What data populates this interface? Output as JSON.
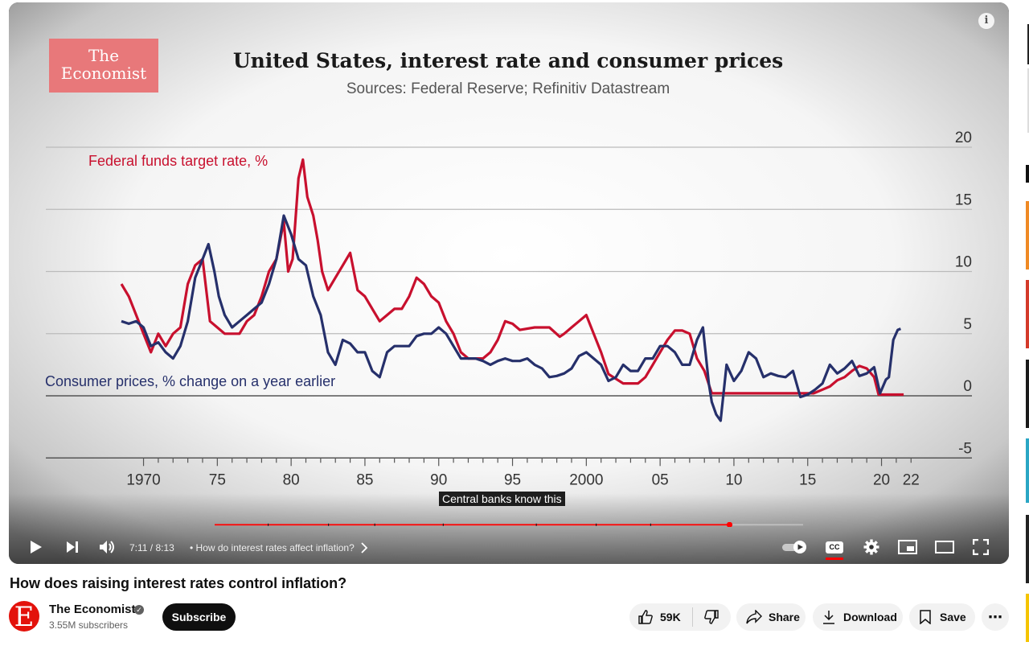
{
  "video": {
    "logo_line1": "The",
    "logo_line2": "Economist",
    "chart_title": "United States, interest rate and consumer prices",
    "chart_subtitle": "Sources: Federal Reserve; Refinitiv Datastream",
    "caption": "Central banks know this",
    "info_icon": "i"
  },
  "chart_data": {
    "type": "line",
    "title": "United States, interest rate and consumer prices",
    "subtitle": "Sources: Federal Reserve; Refinitiv Datastream",
    "ylim": [
      -5,
      20
    ],
    "y_ticks": [
      "20",
      "15",
      "10",
      "5",
      "0",
      "-5"
    ],
    "x_ticks": [
      "1970",
      "75",
      "80",
      "85",
      "90",
      "95",
      "2000",
      "05",
      "10",
      "15",
      "20",
      "22"
    ],
    "grid": true,
    "series": [
      {
        "name": "Federal funds target rate, %",
        "color": "#c8102e",
        "points": [
          [
            1969.0,
            9.0
          ],
          [
            1969.5,
            8.0
          ],
          [
            1970.0,
            6.5
          ],
          [
            1970.5,
            5.0
          ],
          [
            1971.0,
            3.5
          ],
          [
            1971.5,
            5.0
          ],
          [
            1972.0,
            4.0
          ],
          [
            1972.5,
            5.0
          ],
          [
            1973.0,
            5.5
          ],
          [
            1973.5,
            9.0
          ],
          [
            1974.0,
            10.5
          ],
          [
            1974.5,
            11.0
          ],
          [
            1975.0,
            6.0
          ],
          [
            1975.5,
            5.5
          ],
          [
            1976.0,
            5.0
          ],
          [
            1976.5,
            5.0
          ],
          [
            1977.0,
            5.0
          ],
          [
            1977.5,
            6.0
          ],
          [
            1978.0,
            6.5
          ],
          [
            1978.5,
            8.0
          ],
          [
            1979.0,
            10.0
          ],
          [
            1979.5,
            11.0
          ],
          [
            1980.0,
            14.0
          ],
          [
            1980.3,
            10.0
          ],
          [
            1980.6,
            11.0
          ],
          [
            1981.0,
            17.5
          ],
          [
            1981.3,
            19.0
          ],
          [
            1981.6,
            16.0
          ],
          [
            1982.0,
            14.5
          ],
          [
            1982.3,
            12.5
          ],
          [
            1982.6,
            10.0
          ],
          [
            1983.0,
            8.5
          ],
          [
            1983.5,
            9.5
          ],
          [
            1984.0,
            10.5
          ],
          [
            1984.5,
            11.5
          ],
          [
            1985.0,
            8.5
          ],
          [
            1985.5,
            8.0
          ],
          [
            1986.0,
            7.0
          ],
          [
            1986.5,
            6.0
          ],
          [
            1987.0,
            6.5
          ],
          [
            1987.5,
            7.0
          ],
          [
            1988.0,
            7.0
          ],
          [
            1988.5,
            8.0
          ],
          [
            1989.0,
            9.5
          ],
          [
            1989.5,
            9.0
          ],
          [
            1990.0,
            8.0
          ],
          [
            1990.5,
            7.5
          ],
          [
            1991.0,
            6.0
          ],
          [
            1991.5,
            5.0
          ],
          [
            1992.0,
            3.5
          ],
          [
            1992.5,
            3.0
          ],
          [
            1993.0,
            3.0
          ],
          [
            1993.5,
            3.0
          ],
          [
            1994.0,
            3.5
          ],
          [
            1994.5,
            4.5
          ],
          [
            1995.0,
            6.0
          ],
          [
            1995.5,
            5.8
          ],
          [
            1996.0,
            5.3
          ],
          [
            1997.0,
            5.5
          ],
          [
            1998.0,
            5.5
          ],
          [
            1998.7,
            4.75
          ],
          [
            1999.0,
            5.0
          ],
          [
            1999.5,
            5.5
          ],
          [
            2000.0,
            6.0
          ],
          [
            2000.5,
            6.5
          ],
          [
            2001.0,
            5.0
          ],
          [
            2001.5,
            3.5
          ],
          [
            2002.0,
            1.75
          ],
          [
            2003.0,
            1.0
          ],
          [
            2004.0,
            1.0
          ],
          [
            2004.5,
            1.5
          ],
          [
            2005.0,
            2.5
          ],
          [
            2005.5,
            3.5
          ],
          [
            2006.0,
            4.5
          ],
          [
            2006.5,
            5.25
          ],
          [
            2007.0,
            5.25
          ],
          [
            2007.5,
            5.0
          ],
          [
            2008.0,
            3.0
          ],
          [
            2008.5,
            2.0
          ],
          [
            2009.0,
            0.2
          ],
          [
            2015.9,
            0.2
          ],
          [
            2016.5,
            0.5
          ],
          [
            2017.0,
            0.75
          ],
          [
            2017.5,
            1.25
          ],
          [
            2018.0,
            1.5
          ],
          [
            2018.5,
            2.0
          ],
          [
            2019.0,
            2.4
          ],
          [
            2019.5,
            2.2
          ],
          [
            2020.0,
            1.5
          ],
          [
            2020.3,
            0.1
          ],
          [
            2021.0,
            0.1
          ],
          [
            2022.0,
            0.1
          ]
        ]
      },
      {
        "name": "Consumer prices, % change on a year earlier",
        "color": "#26306b",
        "points": [
          [
            1969.0,
            6.0
          ],
          [
            1969.5,
            5.8
          ],
          [
            1970.0,
            6.0
          ],
          [
            1970.5,
            5.5
          ],
          [
            1971.0,
            4.0
          ],
          [
            1971.5,
            4.3
          ],
          [
            1972.0,
            3.5
          ],
          [
            1972.5,
            3.0
          ],
          [
            1973.0,
            4.0
          ],
          [
            1973.5,
            6.0
          ],
          [
            1974.0,
            9.5
          ],
          [
            1974.5,
            11.0
          ],
          [
            1974.9,
            12.2
          ],
          [
            1975.3,
            10.0
          ],
          [
            1975.6,
            8.0
          ],
          [
            1976.0,
            6.5
          ],
          [
            1976.5,
            5.5
          ],
          [
            1977.0,
            6.0
          ],
          [
            1977.5,
            6.5
          ],
          [
            1978.0,
            7.0
          ],
          [
            1978.5,
            7.5
          ],
          [
            1979.0,
            9.0
          ],
          [
            1979.5,
            11.0
          ],
          [
            1980.0,
            14.5
          ],
          [
            1980.5,
            13.0
          ],
          [
            1981.0,
            11.0
          ],
          [
            1981.5,
            10.5
          ],
          [
            1982.0,
            8.0
          ],
          [
            1982.5,
            6.5
          ],
          [
            1983.0,
            3.5
          ],
          [
            1983.5,
            2.5
          ],
          [
            1984.0,
            4.5
          ],
          [
            1984.5,
            4.2
          ],
          [
            1985.0,
            3.5
          ],
          [
            1985.5,
            3.5
          ],
          [
            1986.0,
            2.0
          ],
          [
            1986.5,
            1.5
          ],
          [
            1987.0,
            3.5
          ],
          [
            1987.5,
            4.0
          ],
          [
            1988.0,
            4.0
          ],
          [
            1988.5,
            4.0
          ],
          [
            1989.0,
            4.8
          ],
          [
            1989.5,
            5.0
          ],
          [
            1990.0,
            5.0
          ],
          [
            1990.5,
            5.5
          ],
          [
            1991.0,
            5.0
          ],
          [
            1991.5,
            4.0
          ],
          [
            1992.0,
            3.0
          ],
          [
            1992.5,
            3.0
          ],
          [
            1993.0,
            3.0
          ],
          [
            1993.5,
            2.8
          ],
          [
            1994.0,
            2.5
          ],
          [
            1994.5,
            2.8
          ],
          [
            1995.0,
            3.0
          ],
          [
            1995.5,
            2.8
          ],
          [
            1996.0,
            2.8
          ],
          [
            1996.5,
            3.0
          ],
          [
            1997.0,
            2.5
          ],
          [
            1997.5,
            2.2
          ],
          [
            1998.0,
            1.5
          ],
          [
            1998.5,
            1.6
          ],
          [
            1999.0,
            1.8
          ],
          [
            1999.5,
            2.2
          ],
          [
            2000.0,
            3.2
          ],
          [
            2000.5,
            3.5
          ],
          [
            2001.0,
            3.0
          ],
          [
            2001.5,
            2.5
          ],
          [
            2002.0,
            1.2
          ],
          [
            2002.5,
            1.5
          ],
          [
            2003.0,
            2.5
          ],
          [
            2003.5,
            2.0
          ],
          [
            2004.0,
            2.0
          ],
          [
            2004.5,
            3.0
          ],
          [
            2005.0,
            3.0
          ],
          [
            2005.5,
            4.0
          ],
          [
            2006.0,
            4.0
          ],
          [
            2006.5,
            3.5
          ],
          [
            2007.0,
            2.5
          ],
          [
            2007.5,
            2.5
          ],
          [
            2008.0,
            4.5
          ],
          [
            2008.4,
            5.5
          ],
          [
            2008.8,
            1.0
          ],
          [
            2009.0,
            -0.5
          ],
          [
            2009.3,
            -1.5
          ],
          [
            2009.6,
            -2.0
          ],
          [
            2010.0,
            2.5
          ],
          [
            2010.5,
            1.2
          ],
          [
            2011.0,
            2.0
          ],
          [
            2011.5,
            3.5
          ],
          [
            2012.0,
            3.0
          ],
          [
            2012.5,
            1.5
          ],
          [
            2013.0,
            1.8
          ],
          [
            2013.5,
            1.6
          ],
          [
            2014.0,
            1.5
          ],
          [
            2014.5,
            2.0
          ],
          [
            2015.0,
            -0.1
          ],
          [
            2015.5,
            0.1
          ],
          [
            2016.0,
            0.5
          ],
          [
            2016.5,
            1.0
          ],
          [
            2017.0,
            2.5
          ],
          [
            2017.5,
            1.8
          ],
          [
            2018.0,
            2.2
          ],
          [
            2018.5,
            2.8
          ],
          [
            2019.0,
            1.6
          ],
          [
            2019.5,
            1.8
          ],
          [
            2020.0,
            2.3
          ],
          [
            2020.4,
            0.2
          ],
          [
            2020.8,
            1.3
          ],
          [
            2021.0,
            1.5
          ],
          [
            2021.3,
            4.5
          ],
          [
            2021.6,
            5.3
          ],
          [
            2021.8,
            5.4
          ]
        ]
      }
    ]
  },
  "player": {
    "time": "7:11 / 8:13",
    "chapter": "• How do interest rates affect inflation?",
    "progress_fraction": 0.875,
    "accent": "#ff0000",
    "cc_label": "CC"
  },
  "meta": {
    "title": "How does raising interest rates control inflation?",
    "channel": "The Economist",
    "avatar_letter": "E",
    "subscribers": "3.55M subscribers",
    "subscribe_label": "Subscribe",
    "likes": "59K",
    "share_label": "Share",
    "download_label": "Download",
    "save_label": "Save",
    "more_label": "⋯"
  }
}
